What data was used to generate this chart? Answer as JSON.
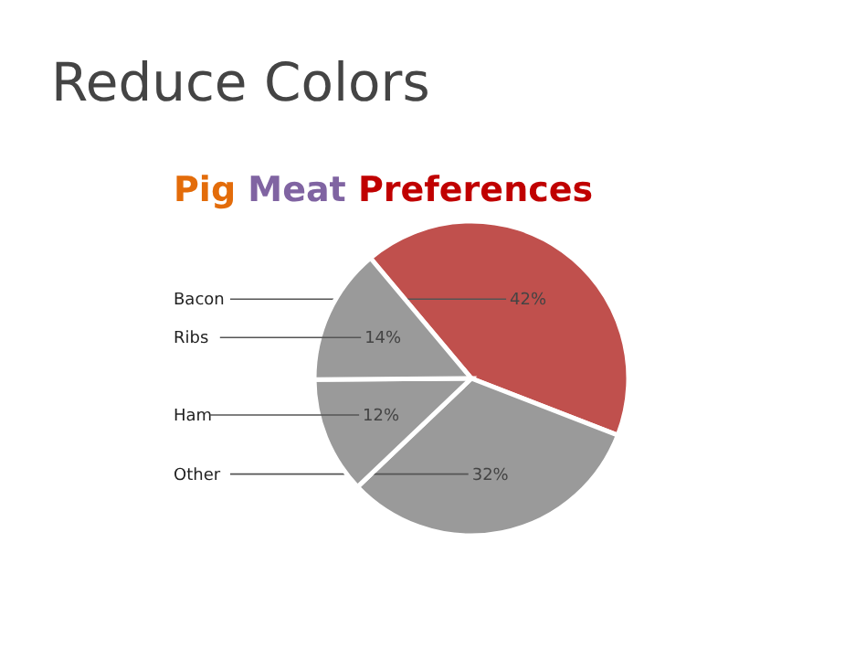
{
  "chart_data": {
    "type": "pie",
    "title": "Reduce Colors",
    "subtitle": "Pig Meat Preferences",
    "categories": [
      "Bacon",
      "Other",
      "Ham",
      "Ribs"
    ],
    "values": [
      42,
      32,
      12,
      14
    ],
    "colors": [
      "#c0504d",
      "#9a9a9a",
      "#9a9a9a",
      "#9a9a9a"
    ],
    "value_labels": [
      "42%",
      "32%",
      "12%",
      "14%"
    ]
  }
}
